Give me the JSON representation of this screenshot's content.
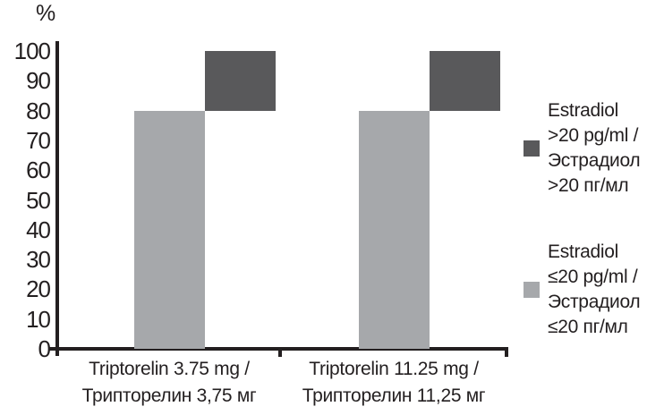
{
  "chart_data": {
    "type": "bar",
    "variant": "stacked-offset-columns",
    "title": "",
    "ylabel": "%",
    "xlabel": "",
    "ylim": [
      0,
      100
    ],
    "yticks": [
      0,
      10,
      20,
      30,
      40,
      50,
      60,
      70,
      80,
      90,
      100
    ],
    "grid": false,
    "legend_position": "right",
    "categories": [
      {
        "line1": "Triptorelin 3.75 mg /",
        "line2": "Трипторелин 3,75 мг"
      },
      {
        "line1": "Triptorelin 11.25 mg /",
        "line2": "Трипторелин 11,25 мг"
      }
    ],
    "series": [
      {
        "name": "Estradiol ≤20 pg/ml / Эстрадиол ≤20 пг/мл",
        "color": "#a6a8ab",
        "values": [
          80,
          80
        ]
      },
      {
        "name": "Estradiol >20 pg/ml / Эстрадиол >20 пг/мл",
        "color": "#59595b",
        "values": [
          20,
          20
        ]
      }
    ],
    "legend": [
      {
        "series": "Estradiol >20 pg/ml / Эстрадиол >20 пг/мл",
        "color": "#59595b",
        "lines": [
          "Estradiol",
          ">20 pg/ml /",
          "Эстрадиол",
          ">20 пг/мл"
        ]
      },
      {
        "series": "Estradiol ≤20 pg/ml / Эстрадиол ≤20 пг/мл",
        "color": "#a6a8ab",
        "lines": [
          "Estradiol",
          "≤20 pg/ml /",
          "Эстрадиол",
          "≤20 пг/мл"
        ]
      }
    ]
  }
}
